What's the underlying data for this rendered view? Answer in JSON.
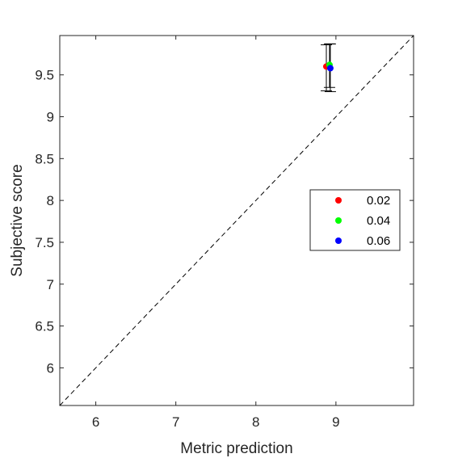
{
  "chart_data": {
    "type": "scatter",
    "xlabel": "Metric prediction",
    "ylabel": "Subjective score",
    "xlim": [
      5.55,
      9.97
    ],
    "ylim": [
      5.55,
      9.97
    ],
    "xticks": [
      6,
      7,
      8,
      9
    ],
    "yticks": [
      6,
      6.5,
      7,
      7.5,
      8,
      8.5,
      9,
      9.5
    ],
    "xtick_labels": [
      "6",
      "7",
      "8",
      "9"
    ],
    "ytick_labels": [
      "6",
      "6.5",
      "7",
      "7.5",
      "8",
      "8.5",
      "9",
      "9.5"
    ],
    "grid": false,
    "legend_position": "right",
    "reference_line": {
      "style": "dashed",
      "color": "#000000",
      "from": [
        5.55,
        5.55
      ],
      "to": [
        9.97,
        9.97
      ]
    },
    "series": [
      {
        "name": "0.02",
        "color": "#ff0000",
        "points": [
          {
            "x": 8.88,
            "y": 9.6,
            "err_low": 9.31,
            "err_high": 9.86
          }
        ]
      },
      {
        "name": "0.04",
        "color": "#00ff00",
        "points": [
          {
            "x": 8.92,
            "y": 9.62,
            "err_low": 9.35,
            "err_high": 9.87
          }
        ]
      },
      {
        "name": "0.06",
        "color": "#0000ff",
        "points": [
          {
            "x": 8.93,
            "y": 9.58,
            "err_low": 9.3,
            "err_high": 9.87
          }
        ]
      }
    ]
  }
}
